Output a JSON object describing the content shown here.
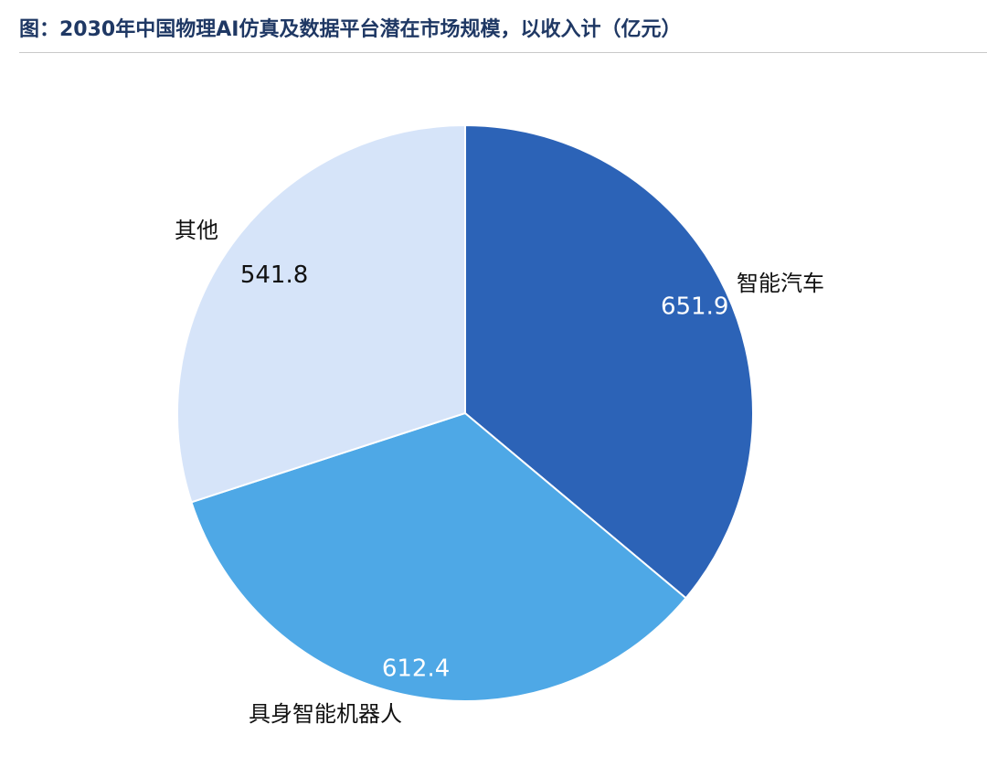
{
  "title": "图：2030年中国物理AI仿真及数据平台潜在市场规模，以收入计（亿元）",
  "chart_data": {
    "type": "pie",
    "title": "图：2030年中国物理AI仿真及数据平台潜在市场规模，以收入计（亿元）",
    "slices": [
      {
        "category": "智能汽车",
        "value": 651.9,
        "display": "651.9",
        "color": "#2c63b7",
        "value_label_color": "#ffffff"
      },
      {
        "category": "具身智能机器人",
        "value": 612.4,
        "display": "612.4",
        "color": "#4ea8e6",
        "value_label_color": "#ffffff"
      },
      {
        "category": "其他",
        "value": 541.8,
        "display": "541.8",
        "color": "#d6e4f9",
        "value_label_color": "#111111"
      }
    ],
    "start_angle_deg": 0,
    "direction": "clockwise",
    "legend": "none"
  }
}
